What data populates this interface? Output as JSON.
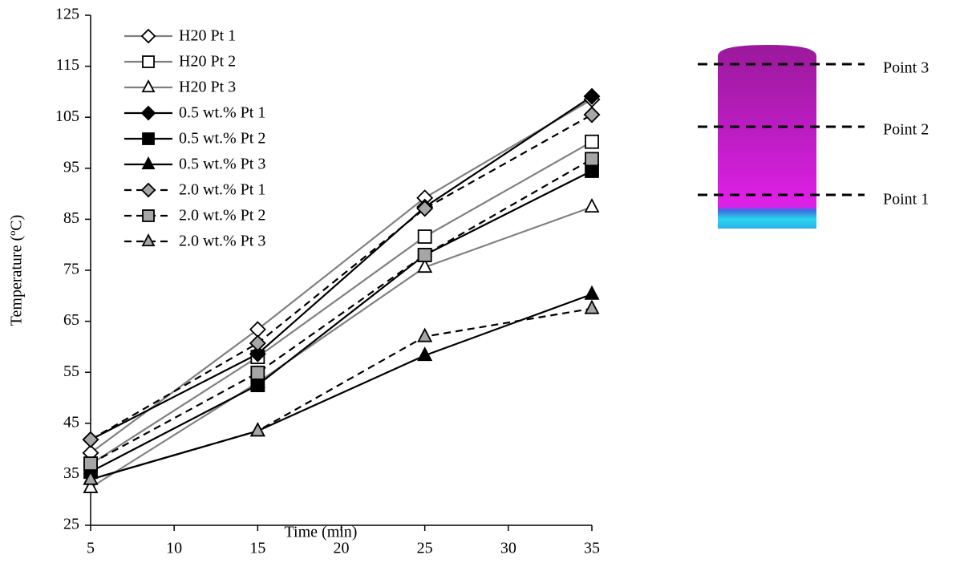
{
  "chart_data": {
    "type": "line",
    "x_label": "Time (min)",
    "y_label": "Temperature (ºC)",
    "x": [
      5,
      15,
      25,
      35
    ],
    "xlim": [
      5,
      35
    ],
    "xticks": [
      5,
      10,
      15,
      20,
      25,
      30,
      35
    ],
    "ylim": [
      25,
      125
    ],
    "yticks": [
      25,
      35,
      45,
      55,
      65,
      75,
      85,
      95,
      105,
      115,
      125
    ],
    "grid": false,
    "legend": "upper-left",
    "series": [
      {
        "name": "H20 Pt 1",
        "color": "#808080",
        "marker": "diamond",
        "marker_fill": "#ffffff",
        "dash": false,
        "values": [
          39.2,
          63.4,
          89.2,
          108.5
        ]
      },
      {
        "name": "H20 Pt 2",
        "color": "#808080",
        "marker": "square",
        "marker_fill": "#ffffff",
        "dash": false,
        "values": [
          37,
          58,
          81.6,
          100.2
        ]
      },
      {
        "name": "H20 Pt 3",
        "color": "#808080",
        "marker": "triangle",
        "marker_fill": "#ffffff",
        "dash": false,
        "values": [
          32.4,
          53,
          75.6,
          87.4
        ]
      },
      {
        "name": "0.5 wt.% Pt 1",
        "color": "#000000",
        "marker": "diamond",
        "marker_fill": "#000000",
        "dash": false,
        "values": [
          41.8,
          58.6,
          87.4,
          109.1
        ]
      },
      {
        "name": "0.5 wt.% Pt 2",
        "color": "#000000",
        "marker": "square",
        "marker_fill": "#000000",
        "dash": false,
        "values": [
          35.5,
          52.5,
          78,
          94.5
        ]
      },
      {
        "name": "0.5 wt.% Pt 3",
        "color": "#000000",
        "marker": "triangle",
        "marker_fill": "#000000",
        "dash": false,
        "values": [
          34,
          43.5,
          58.3,
          70.3
        ]
      },
      {
        "name": "2.0 wt.% Pt 1",
        "color": "#000000",
        "marker": "diamond",
        "marker_fill": "#a6a6a6",
        "dash": true,
        "values": [
          41.8,
          60.7,
          87.1,
          105.5
        ]
      },
      {
        "name": "2.0 wt.% Pt 2",
        "color": "#000000",
        "marker": "square",
        "marker_fill": "#a6a6a6",
        "dash": true,
        "values": [
          37.1,
          54.9,
          78,
          96.8
        ]
      },
      {
        "name": "2.0 wt.% Pt 3",
        "color": "#000000",
        "marker": "triangle",
        "marker_fill": "#a6a6a6",
        "dash": true,
        "values": [
          34,
          43.5,
          62,
          67.5
        ]
      }
    ]
  },
  "diagram": {
    "labels": [
      "Point 3",
      "Point 2",
      "Point 1"
    ]
  }
}
